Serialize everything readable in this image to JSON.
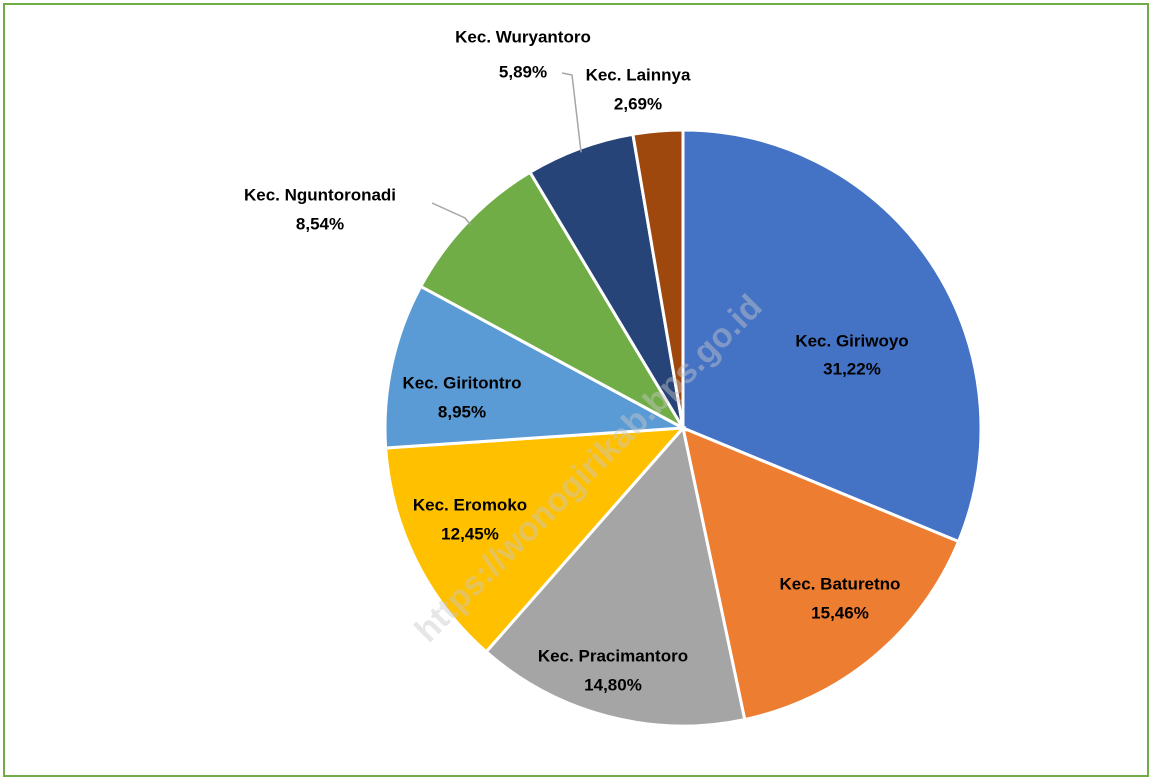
{
  "chart_data": {
    "type": "pie",
    "categories": [
      "Kec. Giriwoyo",
      "Kec. Baturetno",
      "Kec. Pracimantoro",
      "Kec. Eromoko",
      "Kec. Giritontro",
      "Kec. Nguntoronadi",
      "Kec. Wuryantoro",
      "Kec. Lainnya"
    ],
    "values": [
      31.22,
      15.46,
      14.8,
      12.45,
      8.95,
      8.54,
      5.89,
      2.69
    ],
    "value_labels": [
      "31,22%",
      "15,46%",
      "14,80%",
      "12,45%",
      "8,95%",
      "8,54%",
      "5,89%",
      "2,69%"
    ],
    "colors": [
      "#4472c4",
      "#ed7d31",
      "#a5a5a5",
      "#ffc000",
      "#5b9bd5",
      "#70ad47",
      "#264478",
      "#9e480e"
    ],
    "watermark": "https://wonogirikab.bps.go.id"
  }
}
